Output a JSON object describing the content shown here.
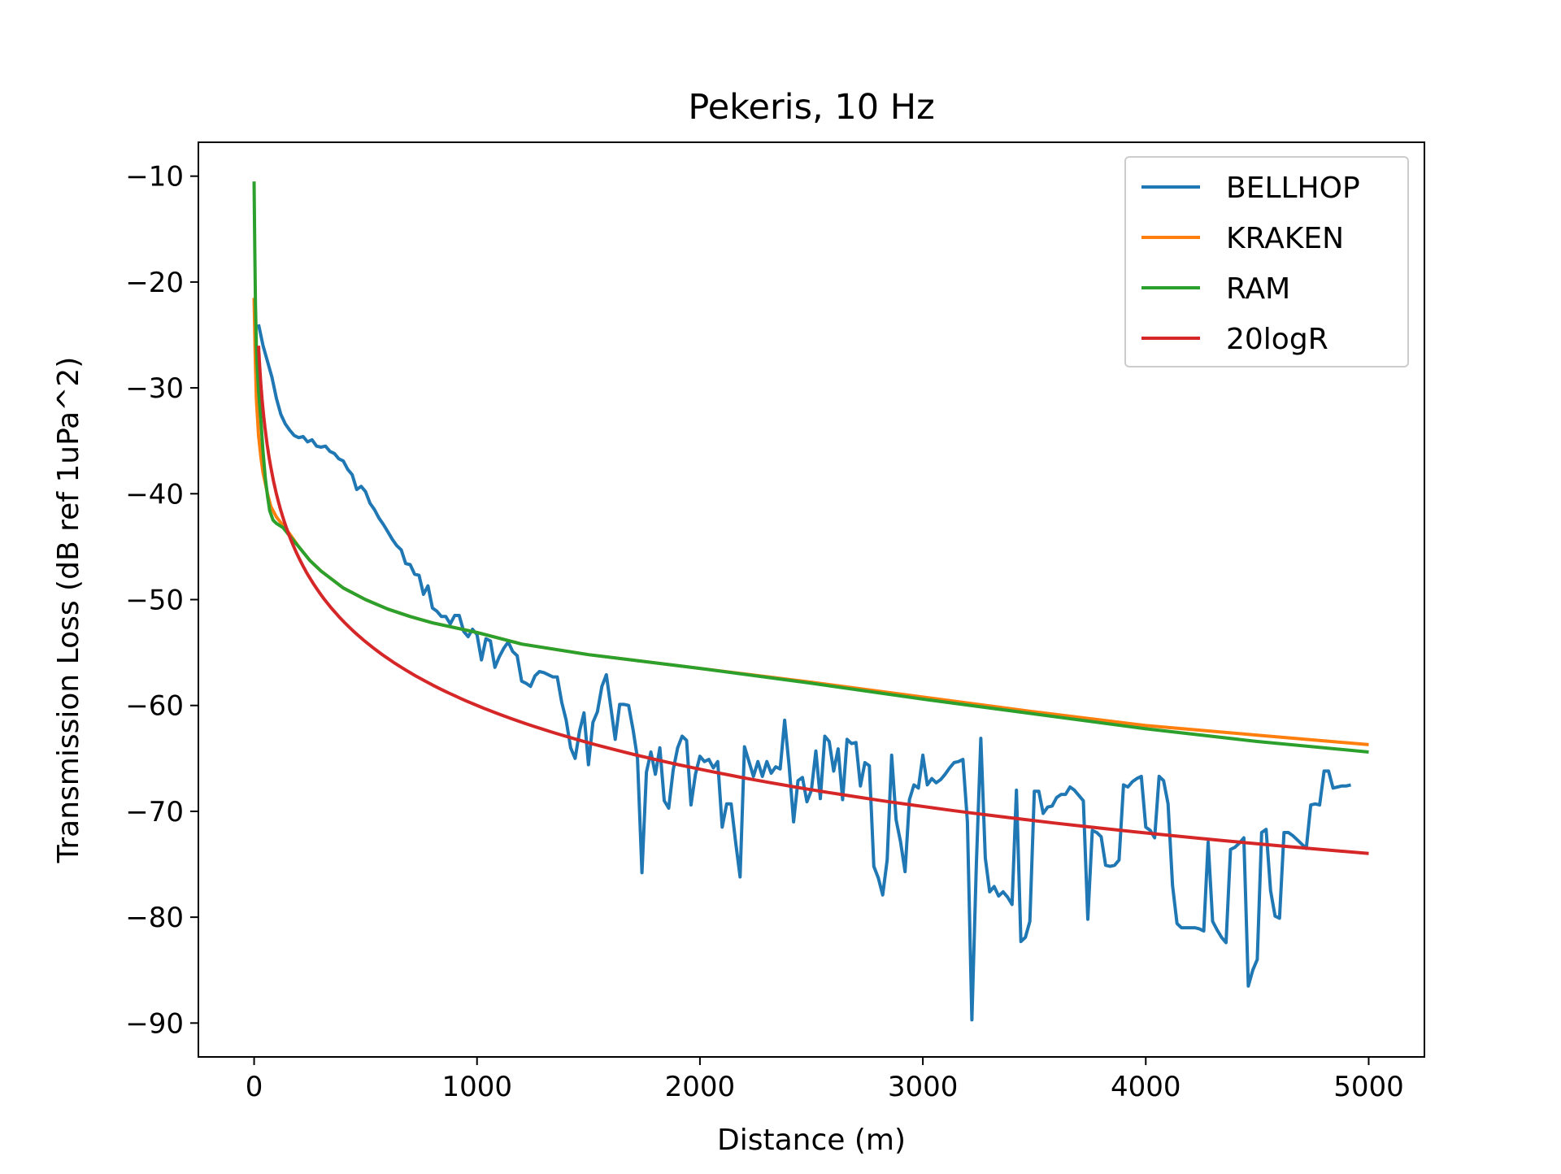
{
  "chart_data": {
    "type": "line",
    "title": "Pekeris, 10 Hz",
    "xlabel": "Distance (m)",
    "ylabel": "Transmission Loss (dB ref 1uPa^2)",
    "xlim": [
      -250,
      5250
    ],
    "ylim": [
      -93.2,
      -6.8
    ],
    "xticks": [
      0,
      1000,
      2000,
      3000,
      4000,
      5000
    ],
    "xtick_labels": [
      "0",
      "1000",
      "2000",
      "3000",
      "4000",
      "5000"
    ],
    "yticks": [
      -10,
      -20,
      -30,
      -40,
      -50,
      -60,
      -70,
      -80,
      -90
    ],
    "ytick_labels": [
      "−10",
      "−20",
      "−30",
      "−40",
      "−50",
      "−60",
      "−70",
      "−80",
      "−90"
    ],
    "grid": false,
    "legend_position": "top-right",
    "series": [
      {
        "name": "BELLHOP",
        "color": "#1f77b4",
        "points": [
          [
            20,
            -24
          ],
          [
            40,
            -26
          ],
          [
            60,
            -27.5
          ],
          [
            80,
            -29
          ],
          [
            100,
            -31
          ],
          [
            120,
            -32.5
          ],
          [
            140,
            -33.4
          ],
          [
            160,
            -34
          ],
          [
            180,
            -34.5
          ],
          [
            200,
            -34.7
          ],
          [
            220,
            -34.6
          ],
          [
            240,
            -35.1
          ],
          [
            260,
            -34.9
          ],
          [
            280,
            -35.5
          ],
          [
            300,
            -35.6
          ],
          [
            320,
            -35.5
          ],
          [
            340,
            -36
          ],
          [
            360,
            -36.2
          ],
          [
            380,
            -36.7
          ],
          [
            400,
            -36.9
          ],
          [
            420,
            -37.7
          ],
          [
            440,
            -38.2
          ],
          [
            460,
            -39.6
          ],
          [
            480,
            -39.3
          ],
          [
            500,
            -39.8
          ],
          [
            520,
            -40.9
          ],
          [
            540,
            -41.5
          ],
          [
            560,
            -42.3
          ],
          [
            580,
            -42.9
          ],
          [
            600,
            -43.6
          ],
          [
            620,
            -44.3
          ],
          [
            640,
            -44.9
          ],
          [
            660,
            -45.3
          ],
          [
            680,
            -46.6
          ],
          [
            700,
            -46.7
          ],
          [
            720,
            -47.6
          ],
          [
            740,
            -47.7
          ],
          [
            760,
            -49.5
          ],
          [
            780,
            -48.7
          ],
          [
            800,
            -50.8
          ],
          [
            820,
            -51.1
          ],
          [
            840,
            -51.6
          ],
          [
            860,
            -51.6
          ],
          [
            880,
            -52.3
          ],
          [
            900,
            -51.5
          ],
          [
            920,
            -51.5
          ],
          [
            940,
            -53
          ],
          [
            960,
            -53.5
          ],
          [
            980,
            -52.8
          ],
          [
            1000,
            -53.3
          ],
          [
            1020,
            -55.7
          ],
          [
            1040,
            -53.7
          ],
          [
            1060,
            -53.9
          ],
          [
            1080,
            -56.4
          ],
          [
            1100,
            -55.4
          ],
          [
            1120,
            -54.6
          ],
          [
            1140,
            -54
          ],
          [
            1160,
            -54.9
          ],
          [
            1180,
            -55.3
          ],
          [
            1200,
            -57.7
          ],
          [
            1220,
            -57.9
          ],
          [
            1240,
            -58.2
          ],
          [
            1260,
            -57.2
          ],
          [
            1280,
            -56.8
          ],
          [
            1300,
            -56.9
          ],
          [
            1320,
            -57.1
          ],
          [
            1340,
            -57.3
          ],
          [
            1360,
            -57.3
          ],
          [
            1380,
            -59.7
          ],
          [
            1400,
            -61.4
          ],
          [
            1420,
            -64
          ],
          [
            1440,
            -65
          ],
          [
            1460,
            -62.4
          ],
          [
            1480,
            -60.7
          ],
          [
            1500,
            -65.6
          ],
          [
            1520,
            -61.6
          ],
          [
            1540,
            -60.6
          ],
          [
            1560,
            -58.2
          ],
          [
            1580,
            -57.1
          ],
          [
            1600,
            -60.1
          ],
          [
            1620,
            -63.2
          ],
          [
            1640,
            -59.9
          ],
          [
            1660,
            -59.9
          ],
          [
            1680,
            -60
          ],
          [
            1700,
            -62.3
          ],
          [
            1720,
            -65
          ],
          [
            1740,
            -75.8
          ],
          [
            1760,
            -66.3
          ],
          [
            1780,
            -64.4
          ],
          [
            1800,
            -66.5
          ],
          [
            1820,
            -64
          ],
          [
            1840,
            -69
          ],
          [
            1860,
            -69.7
          ],
          [
            1880,
            -66.1
          ],
          [
            1900,
            -64
          ],
          [
            1920,
            -62.9
          ],
          [
            1940,
            -63.3
          ],
          [
            1960,
            -69.4
          ],
          [
            1980,
            -66.5
          ],
          [
            2000,
            -64.8
          ],
          [
            2020,
            -65.3
          ],
          [
            2040,
            -65.1
          ],
          [
            2060,
            -65.9
          ],
          [
            2080,
            -65.3
          ],
          [
            2100,
            -71.5
          ],
          [
            2120,
            -69.3
          ],
          [
            2140,
            -69.3
          ],
          [
            2160,
            -72.9
          ],
          [
            2180,
            -76.2
          ],
          [
            2200,
            -63.9
          ],
          [
            2220,
            -65.3
          ],
          [
            2240,
            -66.7
          ],
          [
            2260,
            -65.3
          ],
          [
            2280,
            -66.7
          ],
          [
            2300,
            -65.3
          ],
          [
            2320,
            -66.4
          ],
          [
            2340,
            -65.8
          ],
          [
            2360,
            -66
          ],
          [
            2380,
            -61.4
          ],
          [
            2400,
            -65.7
          ],
          [
            2420,
            -71
          ],
          [
            2440,
            -67.1
          ],
          [
            2460,
            -66.8
          ],
          [
            2480,
            -69.1
          ],
          [
            2500,
            -68
          ],
          [
            2520,
            -64.3
          ],
          [
            2540,
            -68.8
          ],
          [
            2560,
            -62.9
          ],
          [
            2580,
            -63.4
          ],
          [
            2600,
            -66.2
          ],
          [
            2620,
            -64.1
          ],
          [
            2640,
            -68.9
          ],
          [
            2660,
            -63.2
          ],
          [
            2680,
            -63.6
          ],
          [
            2700,
            -63.5
          ],
          [
            2720,
            -67.6
          ],
          [
            2740,
            -65.4
          ],
          [
            2760,
            -65.7
          ],
          [
            2780,
            -75.2
          ],
          [
            2800,
            -76.3
          ],
          [
            2820,
            -77.9
          ],
          [
            2840,
            -74.6
          ],
          [
            2860,
            -64.7
          ],
          [
            2880,
            -70.8
          ],
          [
            2900,
            -72.9
          ],
          [
            2920,
            -75.7
          ],
          [
            2940,
            -68.9
          ],
          [
            2960,
            -67.5
          ],
          [
            2980,
            -67.8
          ],
          [
            3000,
            -64.7
          ],
          [
            3020,
            -67.5
          ],
          [
            3040,
            -66.9
          ],
          [
            3060,
            -67.3
          ],
          [
            3080,
            -67
          ],
          [
            3100,
            -66.5
          ],
          [
            3120,
            -65.9
          ],
          [
            3140,
            -65.4
          ],
          [
            3160,
            -65.3
          ],
          [
            3180,
            -65.1
          ],
          [
            3200,
            -71
          ],
          [
            3220,
            -89.7
          ],
          [
            3240,
            -75
          ],
          [
            3260,
            -63.1
          ],
          [
            3280,
            -74.4
          ],
          [
            3300,
            -77.6
          ],
          [
            3320,
            -77.1
          ],
          [
            3340,
            -78
          ],
          [
            3360,
            -77.6
          ],
          [
            3380,
            -78.1
          ],
          [
            3400,
            -78.8
          ],
          [
            3420,
            -68
          ],
          [
            3440,
            -82.3
          ],
          [
            3460,
            -81.9
          ],
          [
            3480,
            -80.4
          ],
          [
            3500,
            -68.1
          ],
          [
            3520,
            -68.1
          ],
          [
            3540,
            -70.2
          ],
          [
            3560,
            -69.6
          ],
          [
            3580,
            -69.5
          ],
          [
            3600,
            -68.7
          ],
          [
            3620,
            -68.4
          ],
          [
            3640,
            -68.4
          ],
          [
            3660,
            -67.7
          ],
          [
            3680,
            -68
          ],
          [
            3700,
            -68.5
          ],
          [
            3720,
            -69
          ],
          [
            3740,
            -80.2
          ],
          [
            3760,
            -71.8
          ],
          [
            3780,
            -72
          ],
          [
            3800,
            -72.4
          ],
          [
            3820,
            -75.1
          ],
          [
            3840,
            -75.2
          ],
          [
            3860,
            -75.1
          ],
          [
            3880,
            -74.6
          ],
          [
            3900,
            -67.5
          ],
          [
            3920,
            -67.7
          ],
          [
            3940,
            -67.2
          ],
          [
            3960,
            -66.9
          ],
          [
            3980,
            -66.7
          ],
          [
            4000,
            -71.5
          ],
          [
            4020,
            -71.8
          ],
          [
            4040,
            -72.5
          ],
          [
            4060,
            -66.7
          ],
          [
            4080,
            -67.1
          ],
          [
            4100,
            -69.3
          ],
          [
            4120,
            -77
          ],
          [
            4140,
            -80.6
          ],
          [
            4160,
            -81
          ],
          [
            4180,
            -81
          ],
          [
            4200,
            -81
          ],
          [
            4220,
            -81
          ],
          [
            4240,
            -81.1
          ],
          [
            4260,
            -81.3
          ],
          [
            4280,
            -72.9
          ],
          [
            4300,
            -80.4
          ],
          [
            4320,
            -81.2
          ],
          [
            4340,
            -81.9
          ],
          [
            4360,
            -82.4
          ],
          [
            4380,
            -73.6
          ],
          [
            4400,
            -73.4
          ],
          [
            4420,
            -73
          ],
          [
            4440,
            -72.5
          ],
          [
            4460,
            -86.5
          ],
          [
            4480,
            -85
          ],
          [
            4500,
            -84
          ],
          [
            4520,
            -72
          ],
          [
            4540,
            -71.7
          ],
          [
            4560,
            -77.5
          ],
          [
            4580,
            -79.9
          ],
          [
            4600,
            -80.1
          ],
          [
            4620,
            -72
          ],
          [
            4640,
            -72
          ],
          [
            4660,
            -72.3
          ],
          [
            4680,
            -72.7
          ],
          [
            4700,
            -73.1
          ],
          [
            4720,
            -73.5
          ],
          [
            4740,
            -69.4
          ],
          [
            4760,
            -69.3
          ],
          [
            4780,
            -69.4
          ],
          [
            4800,
            -66.2
          ],
          [
            4820,
            -66.2
          ],
          [
            4840,
            -67.8
          ],
          [
            4860,
            -67.7
          ],
          [
            4880,
            -67.6
          ],
          [
            4900,
            -67.6
          ],
          [
            4920,
            -67.5
          ]
        ]
      },
      {
        "name": "KRAKEN",
        "color": "#ff7f0e",
        "points": [
          [
            0,
            -21.5
          ],
          [
            5,
            -27
          ],
          [
            10,
            -31
          ],
          [
            20,
            -34.5
          ],
          [
            30,
            -36.5
          ],
          [
            40,
            -38
          ],
          [
            50,
            -39
          ],
          [
            60,
            -40
          ],
          [
            75,
            -41.2
          ],
          [
            100,
            -42.2
          ],
          [
            130,
            -43
          ],
          [
            160,
            -43.8
          ],
          [
            200,
            -45
          ],
          [
            250,
            -46.3
          ],
          [
            300,
            -47.3
          ],
          [
            400,
            -48.9
          ],
          [
            500,
            -50
          ],
          [
            600,
            -50.9
          ],
          [
            700,
            -51.6
          ],
          [
            800,
            -52.2
          ],
          [
            1000,
            -53.1
          ],
          [
            1200,
            -54.2
          ],
          [
            1500,
            -55.2
          ],
          [
            2000,
            -56.5
          ],
          [
            2500,
            -57.8
          ],
          [
            3000,
            -59.2
          ],
          [
            3500,
            -60.6
          ],
          [
            4000,
            -61.9
          ],
          [
            4500,
            -62.8
          ],
          [
            5000,
            -63.7
          ]
        ]
      },
      {
        "name": "RAM",
        "color": "#2ca02c",
        "points": [
          [
            0,
            -10.5
          ],
          [
            3,
            -17
          ],
          [
            6,
            -22
          ],
          [
            10,
            -26
          ],
          [
            15,
            -28.5
          ],
          [
            20,
            -30.3
          ],
          [
            30,
            -33
          ],
          [
            40,
            -36
          ],
          [
            50,
            -38.5
          ],
          [
            60,
            -40.2
          ],
          [
            70,
            -41.6
          ],
          [
            85,
            -42.5
          ],
          [
            100,
            -42.8
          ],
          [
            130,
            -43.2
          ],
          [
            160,
            -44
          ],
          [
            200,
            -45
          ],
          [
            250,
            -46.3
          ],
          [
            300,
            -47.3
          ],
          [
            400,
            -48.9
          ],
          [
            500,
            -50
          ],
          [
            600,
            -50.9
          ],
          [
            700,
            -51.6
          ],
          [
            800,
            -52.2
          ],
          [
            1000,
            -53.1
          ],
          [
            1200,
            -54.2
          ],
          [
            1500,
            -55.2
          ],
          [
            2000,
            -56.5
          ],
          [
            2500,
            -57.9
          ],
          [
            3000,
            -59.4
          ],
          [
            3500,
            -60.8
          ],
          [
            4000,
            -62.2
          ],
          [
            4500,
            -63.4
          ],
          [
            5000,
            -64.4
          ]
        ]
      },
      {
        "name": "20logR",
        "color": "#d62728",
        "formula": "20logR",
        "xrange": [
          20,
          5000
        ],
        "samples": 200
      }
    ]
  }
}
